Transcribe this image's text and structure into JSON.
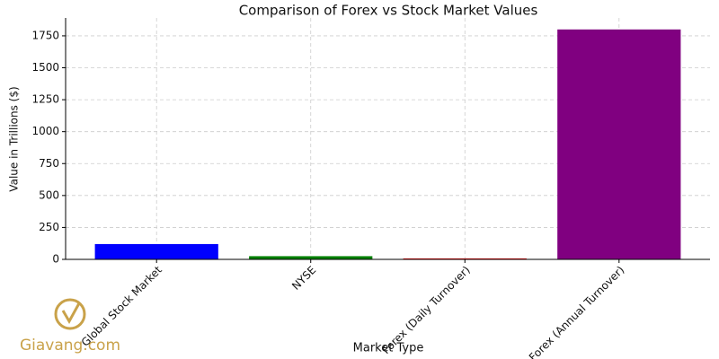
{
  "chart_data": {
    "type": "bar",
    "title": "Comparison of Forex vs Stock Market Values",
    "x_label": "Market Type",
    "y_label": "Value in Trillions ($)",
    "categories": [
      "Global Stock Market",
      "NYSE",
      "Forex (Daily Turnover)",
      "Forex (Annual Turnover)"
    ],
    "values": [
      120,
      25,
      7.5,
      1800
    ],
    "colors": [
      "#0000ff",
      "#008000",
      "#ff0000",
      "#800080"
    ],
    "ylim": [
      0,
      1890
    ],
    "yticks": [
      0,
      250,
      500,
      750,
      1000,
      1250,
      1500,
      1750
    ],
    "grid": true,
    "watermark": "Giavang.com"
  }
}
